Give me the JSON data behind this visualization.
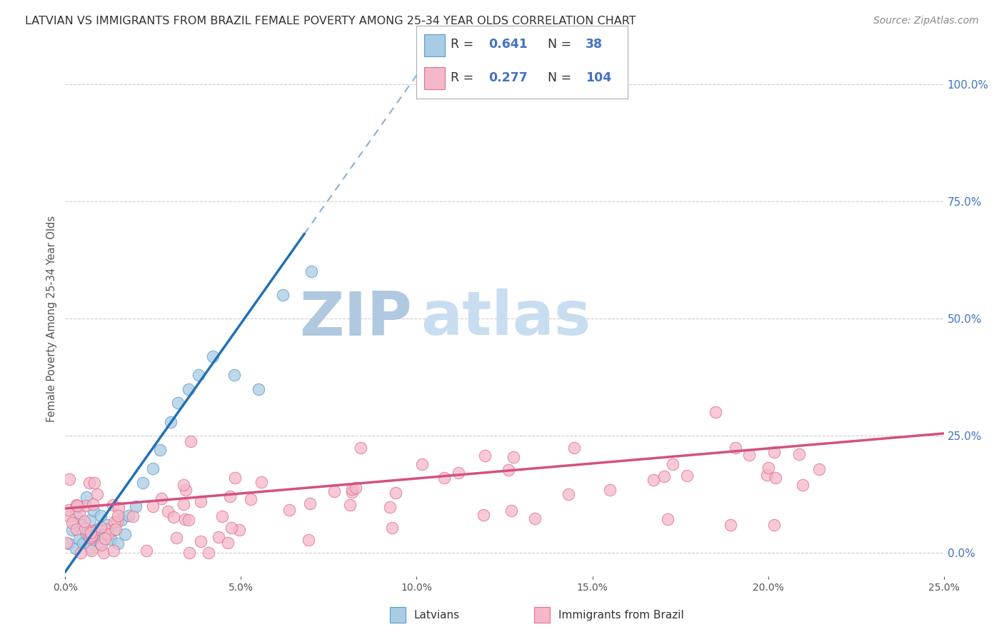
{
  "title": "LATVIAN VS IMMIGRANTS FROM BRAZIL FEMALE POVERTY AMONG 25-34 YEAR OLDS CORRELATION CHART",
  "source": "Source: ZipAtlas.com",
  "ylabel": "Female Poverty Among 25-34 Year Olds",
  "xlim": [
    0.0,
    0.25
  ],
  "ylim": [
    -0.05,
    1.05
  ],
  "blue_color": "#a8cce4",
  "blue_edge_color": "#5b9dc9",
  "pink_color": "#f4b8c8",
  "pink_edge_color": "#e07090",
  "blue_line_color": "#2171b5",
  "pink_line_color": "#d45080",
  "grid_color": "#cccccc",
  "background_color": "#ffffff",
  "right_tick_color": "#4472c4",
  "watermark_zip_color": "#b8d0e8",
  "watermark_atlas_color": "#c8ddf0",
  "title_color": "#333333",
  "source_color": "#888888",
  "ylabel_color": "#555555",
  "legend_r_n_color": "#4472c4",
  "legend_label_color": "#333333"
}
